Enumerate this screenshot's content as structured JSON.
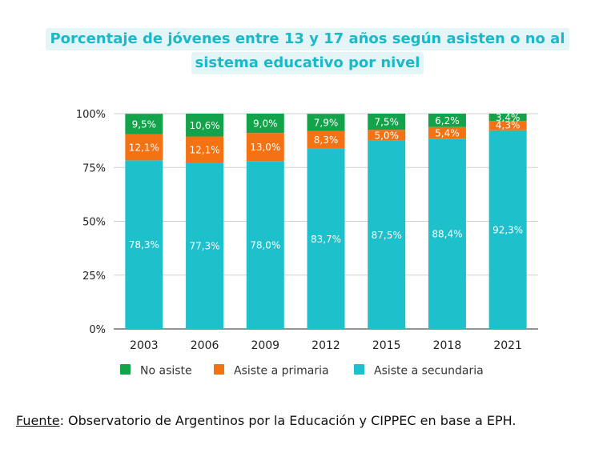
{
  "title": {
    "line1": "Porcentaje de jóvenes entre 13 y 17 años según asisten o no al",
    "line2": "sistema educativo por nivel"
  },
  "source": {
    "label": "Fuente",
    "text": ": Observatorio de Argentinos por la Educación y CIPPEC en base a EPH."
  },
  "colors": {
    "no_asiste": "#13a34a",
    "primaria": "#f27214",
    "secundaria": "#1ec0cb",
    "title_text": "#1ab9c9",
    "title_bg": "#e3f5f6"
  },
  "chart_data": {
    "type": "bar",
    "stacked": true,
    "categories": [
      "2003",
      "2006",
      "2009",
      "2012",
      "2015",
      "2018",
      "2021"
    ],
    "ylim": [
      0,
      100
    ],
    "yticks": [
      "0%",
      "25%",
      "50%",
      "75%",
      "100%"
    ],
    "grid": true,
    "legend_position": "bottom",
    "series": [
      {
        "name": "Asiste a secundaria",
        "color": "#1ec0cb",
        "values": [
          78.3,
          77.3,
          78.0,
          83.7,
          87.5,
          88.4,
          92.3
        ],
        "labels": [
          "78,3%",
          "77,3%",
          "78,0%",
          "83,7%",
          "87,5%",
          "88,4%",
          "92,3%"
        ]
      },
      {
        "name": "Asiste a primaria",
        "color": "#f27214",
        "values": [
          12.1,
          12.1,
          13.0,
          8.3,
          5.0,
          5.4,
          4.3
        ],
        "labels": [
          "12,1%",
          "12,1%",
          "13,0%",
          "8,3%",
          "5,0%",
          "5,4%",
          "4,3%"
        ]
      },
      {
        "name": "No asiste",
        "color": "#13a34a",
        "values": [
          9.5,
          10.6,
          9.0,
          7.9,
          7.5,
          6.2,
          3.4
        ],
        "labels": [
          "9,5%",
          "10,6%",
          "9,0%",
          "7,9%",
          "7,5%",
          "6,2%",
          "3,4%"
        ]
      }
    ],
    "legend": [
      "No asiste",
      "Asiste a primaria",
      "Asiste a secundaria"
    ]
  }
}
